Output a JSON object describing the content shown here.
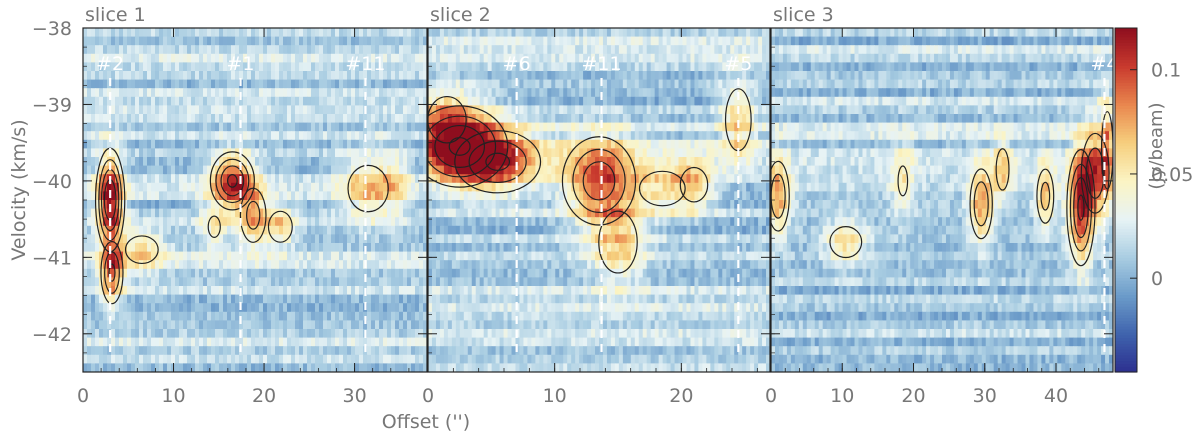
{
  "chart_data": {
    "type": "heatmap",
    "y_axis": {
      "label": "Velocity (km/s)",
      "range": [
        -42.5,
        -38
      ],
      "ticks": [
        -38,
        -39,
        -40,
        -41,
        -42
      ],
      "tick_labels": [
        "−38",
        "−39",
        "−40",
        "−41",
        "−42"
      ]
    },
    "x_axis": {
      "label": "Offset ('')"
    },
    "colorbar": {
      "label": "(Jy/beam)",
      "range": [
        -0.045,
        0.12
      ],
      "ticks": [
        0,
        0.05,
        0.1
      ],
      "tick_labels": [
        "0",
        "0.05",
        "0.1"
      ],
      "colors": [
        "#2c2f8f",
        "#3f63ad",
        "#6b9bc9",
        "#a9cde2",
        "#e7f3f5",
        "#fbf4c4",
        "#f6cf7e",
        "#e9874e",
        "#c93a2e",
        "#8e0e1e"
      ]
    },
    "panels": [
      {
        "title": "slice 1",
        "x_range": [
          0,
          38
        ],
        "x_ticks": [
          0,
          10,
          20,
          30
        ],
        "x_tick_labels": [
          "0",
          "10",
          "20",
          "30"
        ],
        "markers": [
          {
            "label": "#2",
            "x": 3.0
          },
          {
            "label": "#1",
            "x": 17.4
          },
          {
            "label": "#11",
            "x": 31.2
          }
        ],
        "blobs": [
          {
            "x": 3.0,
            "v": -40.25,
            "sx": 1.0,
            "sv": 0.42,
            "amp": 0.11
          },
          {
            "x": 3.2,
            "v": -41.2,
            "sx": 0.9,
            "sv": 0.3,
            "amp": 0.075
          },
          {
            "x": 6.5,
            "v": -40.9,
            "sx": 2.0,
            "sv": 0.2,
            "amp": 0.045
          },
          {
            "x": 16.5,
            "v": -40.0,
            "sx": 1.6,
            "sv": 0.25,
            "amp": 0.095
          },
          {
            "x": 18.8,
            "v": -40.45,
            "sx": 1.2,
            "sv": 0.3,
            "amp": 0.06
          },
          {
            "x": 21.8,
            "v": -40.6,
            "sx": 1.3,
            "sv": 0.2,
            "amp": 0.05
          },
          {
            "x": 14.5,
            "v": -40.6,
            "sx": 1.2,
            "sv": 0.25,
            "amp": 0.035
          },
          {
            "x": 31.5,
            "v": -40.1,
            "sx": 2.2,
            "sv": 0.3,
            "amp": 0.05
          },
          {
            "x": 34.5,
            "v": -40.0,
            "sx": 1.2,
            "sv": 0.3,
            "amp": 0.03
          }
        ]
      },
      {
        "title": "slice 2",
        "x_range": [
          0,
          27
        ],
        "x_ticks": [
          0,
          10,
          20
        ],
        "x_tick_labels": [
          "0",
          "10",
          "20"
        ],
        "markers": [
          {
            "label": "#6",
            "x": 7.0
          },
          {
            "label": "#11",
            "x": 13.7
          },
          {
            "label": "#5",
            "x": 24.5
          }
        ],
        "blobs": [
          {
            "x": 2.5,
            "v": -39.55,
            "sx": 2.5,
            "sv": 0.35,
            "amp": 0.095
          },
          {
            "x": 5.5,
            "v": -39.75,
            "sx": 2.5,
            "sv": 0.3,
            "amp": 0.075
          },
          {
            "x": 1.5,
            "v": -39.2,
            "sx": 1.5,
            "sv": 0.3,
            "amp": 0.05
          },
          {
            "x": 13.5,
            "v": -40.0,
            "sx": 2.0,
            "sv": 0.4,
            "amp": 0.085
          },
          {
            "x": 15.0,
            "v": -40.8,
            "sx": 1.5,
            "sv": 0.4,
            "amp": 0.05
          },
          {
            "x": 18.5,
            "v": -40.1,
            "sx": 2.0,
            "sv": 0.25,
            "amp": 0.045
          },
          {
            "x": 21.0,
            "v": -40.05,
            "sx": 1.2,
            "sv": 0.25,
            "amp": 0.045
          },
          {
            "x": 24.5,
            "v": -39.2,
            "sx": 1.0,
            "sv": 0.4,
            "amp": 0.05
          }
        ]
      },
      {
        "title": "slice 3",
        "x_range": [
          0,
          48
        ],
        "x_ticks": [
          0,
          10,
          20,
          30,
          40
        ],
        "x_tick_labels": [
          "0",
          "10",
          "20",
          "30",
          "40"
        ],
        "markers": [
          {
            "label": "#4",
            "x": 46.8
          }
        ],
        "blobs": [
          {
            "x": 1.0,
            "v": -40.2,
            "sx": 1.2,
            "sv": 0.35,
            "amp": 0.07
          },
          {
            "x": 10.5,
            "v": -40.8,
            "sx": 2.2,
            "sv": 0.2,
            "amp": 0.05
          },
          {
            "x": 18.5,
            "v": -40.0,
            "sx": 1.2,
            "sv": 0.35,
            "amp": 0.035
          },
          {
            "x": 29.5,
            "v": -40.3,
            "sx": 1.2,
            "sv": 0.35,
            "amp": 0.07
          },
          {
            "x": 32.5,
            "v": -39.85,
            "sx": 1.0,
            "sv": 0.3,
            "amp": 0.045
          },
          {
            "x": 38.5,
            "v": -40.2,
            "sx": 1.0,
            "sv": 0.3,
            "amp": 0.06
          },
          {
            "x": 43.5,
            "v": -40.35,
            "sx": 1.3,
            "sv": 0.5,
            "amp": 0.095
          },
          {
            "x": 45.5,
            "v": -39.9,
            "sx": 1.5,
            "sv": 0.4,
            "amp": 0.07
          },
          {
            "x": 47.2,
            "v": -39.6,
            "sx": 0.8,
            "sv": 0.5,
            "amp": 0.05
          }
        ]
      }
    ]
  }
}
